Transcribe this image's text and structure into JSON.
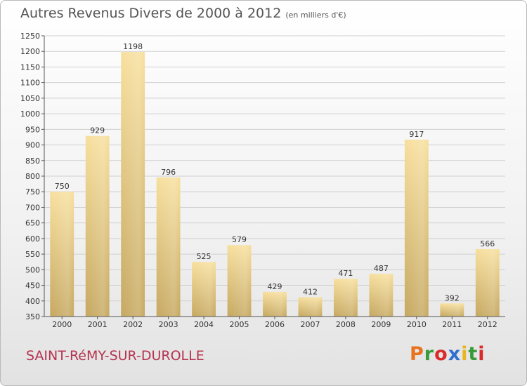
{
  "header": {
    "title": "Autres Revenus Divers de 2000 à 2012",
    "subtitle": "(en milliers d'€)"
  },
  "footer": {
    "commune": "SAINT-RéMY-SUR-DUROLLE",
    "brand": "Proxiti",
    "brand_colors": [
      "#e8731f",
      "#3a9a3a",
      "#d92b2b",
      "#2e6fd0",
      "#e8b51f",
      "#3a9a3a",
      "#d92b2b"
    ]
  },
  "chart_data": {
    "type": "bar",
    "categories": [
      "2000",
      "2001",
      "2002",
      "2003",
      "2004",
      "2005",
      "2006",
      "2007",
      "2008",
      "2009",
      "2010",
      "2011",
      "2012"
    ],
    "values": [
      750,
      929,
      1198,
      796,
      525,
      579,
      429,
      412,
      471,
      487,
      917,
      392,
      566
    ],
    "ylim": [
      350,
      1250
    ],
    "yticks": [
      350,
      400,
      450,
      500,
      550,
      600,
      650,
      700,
      750,
      800,
      850,
      900,
      950,
      1000,
      1050,
      1100,
      1150,
      1200,
      1250
    ],
    "grid": true,
    "bar_color_light": "#f6dc98",
    "bar_color_dark": "#c9aa63"
  }
}
